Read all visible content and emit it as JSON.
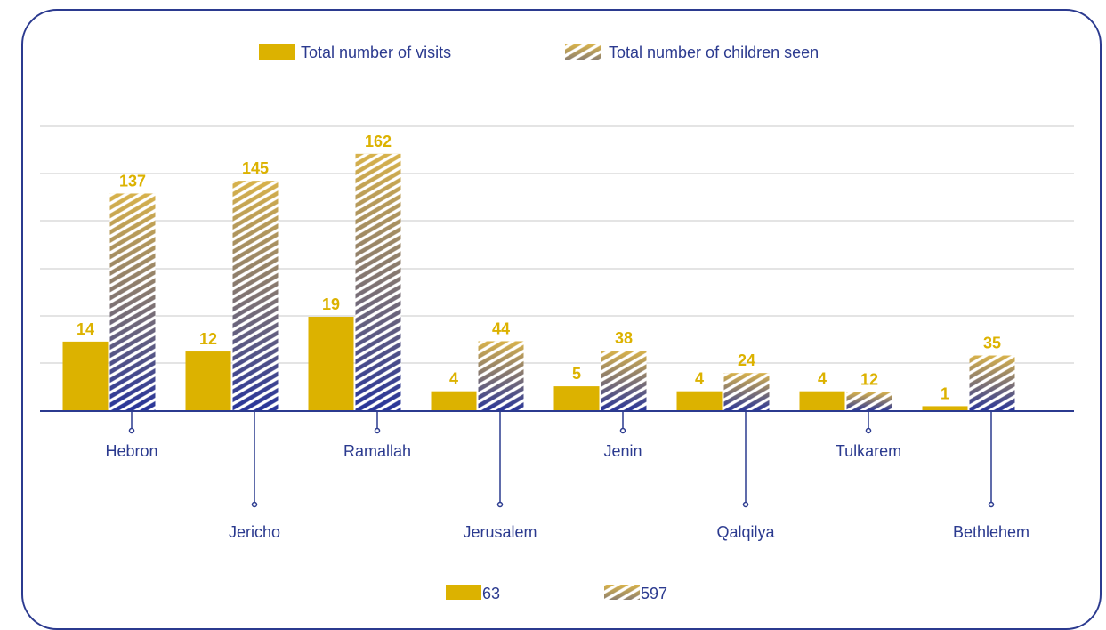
{
  "colors": {
    "visits": "#dcb200",
    "children_top": "#d8b24a",
    "children_bottom": "#27349a",
    "label": "#2b3a8f",
    "axis": "#2b3a8f",
    "grid": "#c8c8c8"
  },
  "legend": {
    "visits_label": "Total number of visits",
    "children_label": "Total number of children seen"
  },
  "totals": {
    "visits": "63",
    "children": "597"
  },
  "chart_data": {
    "type": "bar",
    "categories": [
      "Hebron",
      "Jericho",
      "Ramallah",
      "Jerusalem",
      "Jenin",
      "Qalqilya",
      "Tulkarem",
      "Bethlehem"
    ],
    "series": [
      {
        "name": "Total number of visits",
        "values": [
          14,
          12,
          19,
          4,
          5,
          4,
          4,
          1
        ]
      },
      {
        "name": "Total number of children seen",
        "values": [
          137,
          145,
          162,
          44,
          38,
          24,
          12,
          35
        ]
      }
    ],
    "legend_position": "top",
    "grid": true
  }
}
